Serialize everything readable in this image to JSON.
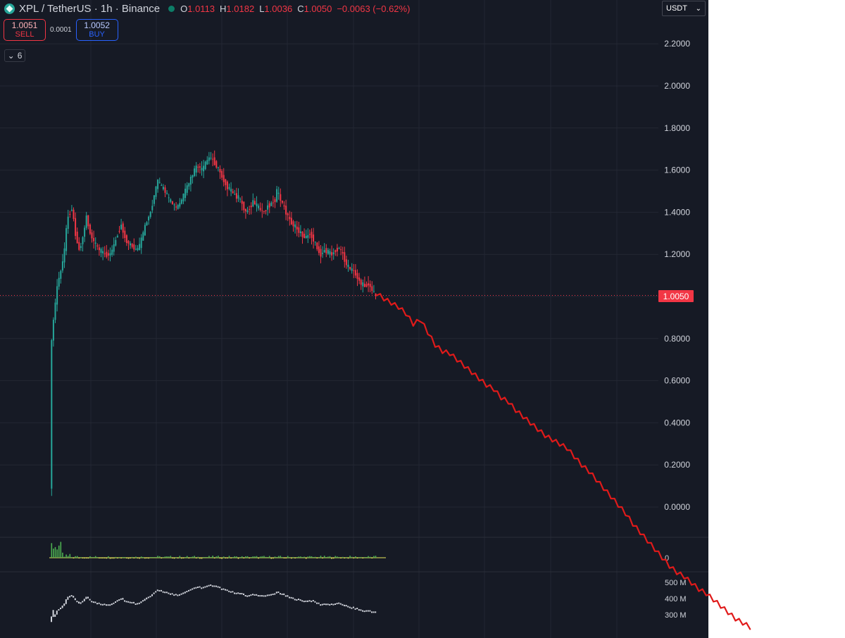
{
  "header": {
    "symbol": "XPL / TetherUS · 1h · Binance",
    "ohlc": [
      {
        "key": "O",
        "value": "1.0113"
      },
      {
        "key": "H",
        "value": "1.0182"
      },
      {
        "key": "L",
        "value": "1.0036"
      },
      {
        "key": "C",
        "value": "1.0050"
      },
      {
        "key": "",
        "value": "−0.0063 (−0.62%)"
      }
    ]
  },
  "trade": {
    "sell_price": "1.0051",
    "sell_label": "SELL",
    "spread": "0.0001",
    "buy_price": "1.0052",
    "buy_label": "BUY"
  },
  "indicators_count": "6",
  "currency": "USDT",
  "current_price_label": "1.0050",
  "colors": {
    "background": "#161a25",
    "up": "#26a69a",
    "down": "#f23645",
    "hand_drawn_line": "#e01a1a",
    "osc_positive": "#4caf50",
    "osc_negative": "#e6e65a",
    "volume": "#d1d4dc"
  },
  "chart_data": {
    "type": "line",
    "price_axis": {
      "ticks": [
        "2.2000",
        "2.0000",
        "1.8000",
        "1.6000",
        "1.4000",
        "1.2000",
        "1.0000",
        "0.8000",
        "0.6000",
        "0.4000",
        "0.2000",
        "0.0000"
      ],
      "ylim": [
        0.0,
        2.3
      ]
    },
    "price_path": [
      [
        0,
        0.1
      ],
      [
        1,
        0.78
      ],
      [
        2,
        0.9
      ],
      [
        3,
        0.96
      ],
      [
        4,
        1.05
      ],
      [
        6,
        1.12
      ],
      [
        8,
        1.22
      ],
      [
        9,
        1.32
      ],
      [
        10,
        1.38
      ],
      [
        12,
        1.42
      ],
      [
        14,
        1.3
      ],
      [
        16,
        1.22
      ],
      [
        18,
        1.28
      ],
      [
        20,
        1.38
      ],
      [
        22,
        1.3
      ],
      [
        24,
        1.26
      ],
      [
        27,
        1.22
      ],
      [
        30,
        1.2
      ],
      [
        33,
        1.2
      ],
      [
        35,
        1.24
      ],
      [
        37,
        1.3
      ],
      [
        39,
        1.34
      ],
      [
        41,
        1.28
      ],
      [
        43,
        1.25
      ],
      [
        45,
        1.24
      ],
      [
        47,
        1.22
      ],
      [
        49,
        1.24
      ],
      [
        51,
        1.3
      ],
      [
        53,
        1.36
      ],
      [
        55,
        1.4
      ],
      [
        57,
        1.48
      ],
      [
        59,
        1.55
      ],
      [
        61,
        1.52
      ],
      [
        63,
        1.5
      ],
      [
        65,
        1.46
      ],
      [
        67,
        1.44
      ],
      [
        69,
        1.42
      ],
      [
        71,
        1.44
      ],
      [
        73,
        1.48
      ],
      [
        75,
        1.52
      ],
      [
        77,
        1.56
      ],
      [
        79,
        1.6
      ],
      [
        81,
        1.62
      ],
      [
        83,
        1.6
      ],
      [
        85,
        1.63
      ],
      [
        87,
        1.66
      ],
      [
        89,
        1.65
      ],
      [
        91,
        1.62
      ],
      [
        93,
        1.59
      ],
      [
        95,
        1.55
      ],
      [
        97,
        1.52
      ],
      [
        99,
        1.5
      ],
      [
        101,
        1.48
      ],
      [
        103,
        1.47
      ],
      [
        105,
        1.44
      ],
      [
        107,
        1.4
      ],
      [
        109,
        1.42
      ],
      [
        111,
        1.45
      ],
      [
        113,
        1.43
      ],
      [
        115,
        1.41
      ],
      [
        117,
        1.4
      ],
      [
        119,
        1.43
      ],
      [
        121,
        1.44
      ],
      [
        123,
        1.46
      ],
      [
        124,
        1.5
      ],
      [
        126,
        1.46
      ],
      [
        128,
        1.42
      ],
      [
        130,
        1.38
      ],
      [
        132,
        1.35
      ],
      [
        134,
        1.33
      ],
      [
        136,
        1.31
      ],
      [
        138,
        1.29
      ],
      [
        140,
        1.28
      ],
      [
        142,
        1.3
      ],
      [
        144,
        1.27
      ],
      [
        146,
        1.23
      ],
      [
        148,
        1.2
      ],
      [
        150,
        1.22
      ],
      [
        152,
        1.21
      ],
      [
        154,
        1.2
      ],
      [
        156,
        1.22
      ],
      [
        158,
        1.23
      ],
      [
        160,
        1.2
      ],
      [
        162,
        1.15
      ],
      [
        164,
        1.13
      ],
      [
        166,
        1.12
      ],
      [
        168,
        1.09
      ],
      [
        170,
        1.06
      ],
      [
        172,
        1.05
      ],
      [
        174,
        1.06
      ],
      [
        176,
        1.03
      ],
      [
        178,
        1.005
      ]
    ],
    "projection_path": [
      [
        178,
        1.005
      ],
      [
        182,
        0.98
      ],
      [
        186,
        0.96
      ],
      [
        190,
        0.94
      ],
      [
        194,
        0.91
      ],
      [
        198,
        0.86
      ],
      [
        202,
        0.88
      ],
      [
        206,
        0.82
      ],
      [
        210,
        0.76
      ],
      [
        214,
        0.73
      ],
      [
        218,
        0.72
      ],
      [
        222,
        0.69
      ],
      [
        226,
        0.66
      ],
      [
        230,
        0.63
      ],
      [
        234,
        0.6
      ],
      [
        238,
        0.57
      ],
      [
        242,
        0.55
      ],
      [
        246,
        0.51
      ],
      [
        250,
        0.49
      ],
      [
        254,
        0.45
      ],
      [
        258,
        0.42
      ],
      [
        262,
        0.39
      ],
      [
        266,
        0.36
      ],
      [
        270,
        0.33
      ],
      [
        274,
        0.31
      ],
      [
        278,
        0.29
      ],
      [
        282,
        0.27
      ],
      [
        286,
        0.23
      ],
      [
        290,
        0.19
      ],
      [
        294,
        0.16
      ],
      [
        298,
        0.12
      ],
      [
        302,
        0.08
      ],
      [
        306,
        0.04
      ],
      [
        310,
        0.0
      ],
      [
        314,
        -0.04
      ],
      [
        318,
        -0.09
      ],
      [
        322,
        -0.13
      ],
      [
        326,
        -0.17
      ],
      [
        330,
        -0.21
      ],
      [
        334,
        -0.25
      ],
      [
        338,
        -0.29
      ],
      [
        342,
        -0.32
      ],
      [
        346,
        -0.34
      ],
      [
        350,
        -0.37
      ],
      [
        354,
        -0.4
      ],
      [
        358,
        -0.42
      ],
      [
        362,
        -0.45
      ],
      [
        366,
        -0.48
      ],
      [
        370,
        -0.51
      ],
      [
        374,
        -0.54
      ],
      [
        378,
        -0.56
      ],
      [
        382,
        -0.58
      ]
    ],
    "current_price": 1.005,
    "oscillator": {
      "zero_label": "0"
    },
    "volume": {
      "ticks": [
        "500 M",
        "400 M",
        "300 M"
      ],
      "ylim": [
        270,
        540
      ]
    }
  }
}
